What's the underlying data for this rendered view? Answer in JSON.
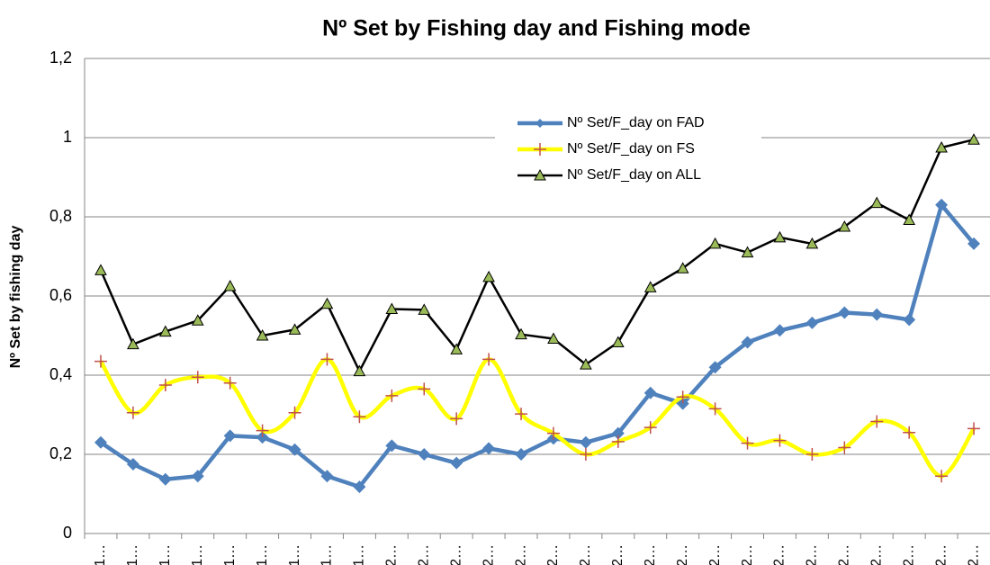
{
  "chart_data": {
    "type": "line",
    "title": "Nº Set by Fishing day and Fishing mode",
    "y_label": "Nº Set by fishing day",
    "categories": [
      "1…",
      "1…",
      "1…",
      "1…",
      "1…",
      "1…",
      "1…",
      "1…",
      "1…",
      "2…",
      "2…",
      "2…",
      "2…",
      "2…",
      "2…",
      "2…",
      "2…",
      "2…",
      "2…",
      "2…",
      "2…",
      "2…",
      "2…",
      "2…",
      "2…",
      "2…",
      "2…",
      "2…"
    ],
    "series": [
      {
        "name": "Nº Set/F_day on FAD",
        "color": "#4f81bd",
        "marker": "diamond",
        "marker_color": "#4f81bd",
        "smooth": false,
        "values": [
          0.23,
          0.175,
          0.137,
          0.145,
          0.247,
          0.243,
          0.212,
          0.145,
          0.118,
          0.222,
          0.2,
          0.178,
          0.215,
          0.2,
          0.24,
          0.23,
          0.253,
          0.355,
          0.328,
          0.42,
          0.483,
          0.513,
          0.532,
          0.558,
          0.553,
          0.54,
          0.83,
          0.732
        ]
      },
      {
        "name": "Nº Set/F_day on FS",
        "color": "#ffff00",
        "marker": "plus",
        "marker_color": "#c0504d",
        "smooth": true,
        "values": [
          0.435,
          0.305,
          0.375,
          0.395,
          0.38,
          0.26,
          0.305,
          0.44,
          0.295,
          0.348,
          0.365,
          0.29,
          0.44,
          0.302,
          0.253,
          0.2,
          0.232,
          0.268,
          0.345,
          0.315,
          0.228,
          0.235,
          0.2,
          0.217,
          0.283,
          0.255,
          0.145,
          0.265
        ]
      },
      {
        "name": "Nº Set/F_day on ALL",
        "color": "#000000",
        "marker": "triangle",
        "marker_color": "#9bbb59",
        "smooth": false,
        "values": [
          0.665,
          0.478,
          0.51,
          0.538,
          0.625,
          0.5,
          0.515,
          0.58,
          0.41,
          0.567,
          0.565,
          0.465,
          0.648,
          0.503,
          0.492,
          0.427,
          0.483,
          0.622,
          0.67,
          0.732,
          0.71,
          0.748,
          0.732,
          0.775,
          0.835,
          0.792,
          0.975,
          0.995
        ]
      }
    ],
    "ylim": [
      0,
      1.2
    ],
    "yticks": [
      0,
      {
        "value": 0.2,
        "label": "0,2"
      },
      {
        "value": 0.4,
        "label": "0,4"
      },
      {
        "value": 0.6,
        "label": "0,6"
      },
      {
        "value": 0.8,
        "label": "0,8"
      },
      1,
      {
        "value": 1.2,
        "label": "1,2"
      }
    ],
    "grid": true
  }
}
